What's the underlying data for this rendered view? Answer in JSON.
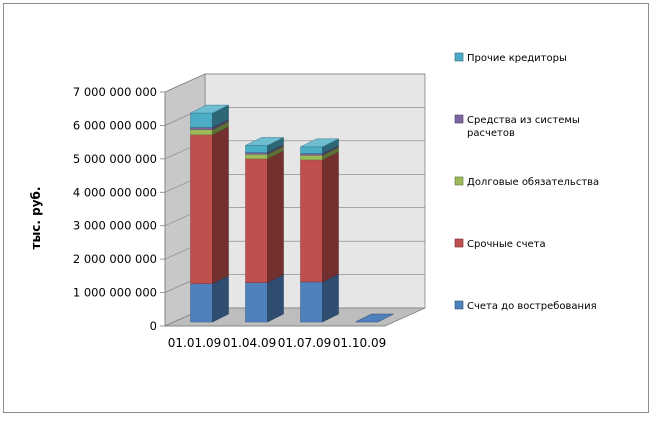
{
  "chart_data": {
    "type": "bar",
    "stacked": true,
    "three_d": true,
    "ylabel": "тыс. руб.",
    "ylim": [
      0,
      7000000000
    ],
    "y_ticks": [
      0,
      1000000000,
      2000000000,
      3000000000,
      4000000000,
      5000000000,
      6000000000,
      7000000000
    ],
    "y_tick_labels": [
      "0",
      "1 000 000 000",
      "2 000 000 000",
      "3 000 000 000",
      "4 000 000 000",
      "5 000 000 000",
      "6 000 000 000",
      "7 000 000 000"
    ],
    "categories": [
      "01.01.09",
      "01.04.09",
      "01.07.09",
      "01.10.09"
    ],
    "legend_position": "right",
    "series": [
      {
        "name": "Счета до востребования",
        "color": "#4F81BD",
        "values": [
          1150000000,
          1180000000,
          1200000000,
          0
        ]
      },
      {
        "name": "Срочные счета",
        "color": "#C0504D",
        "values": [
          4450000000,
          3700000000,
          3650000000,
          0
        ]
      },
      {
        "name": "Долговые обязательства",
        "color": "#9BBB59",
        "values": [
          160000000,
          140000000,
          140000000,
          0
        ]
      },
      {
        "name": "Средства из системы расчетов",
        "color": "#8064A2",
        "values": [
          60000000,
          50000000,
          50000000,
          0
        ]
      },
      {
        "name": "Прочие кредиторы",
        "color": "#4BACC6",
        "values": [
          430000000,
          210000000,
          200000000,
          0
        ]
      }
    ]
  }
}
